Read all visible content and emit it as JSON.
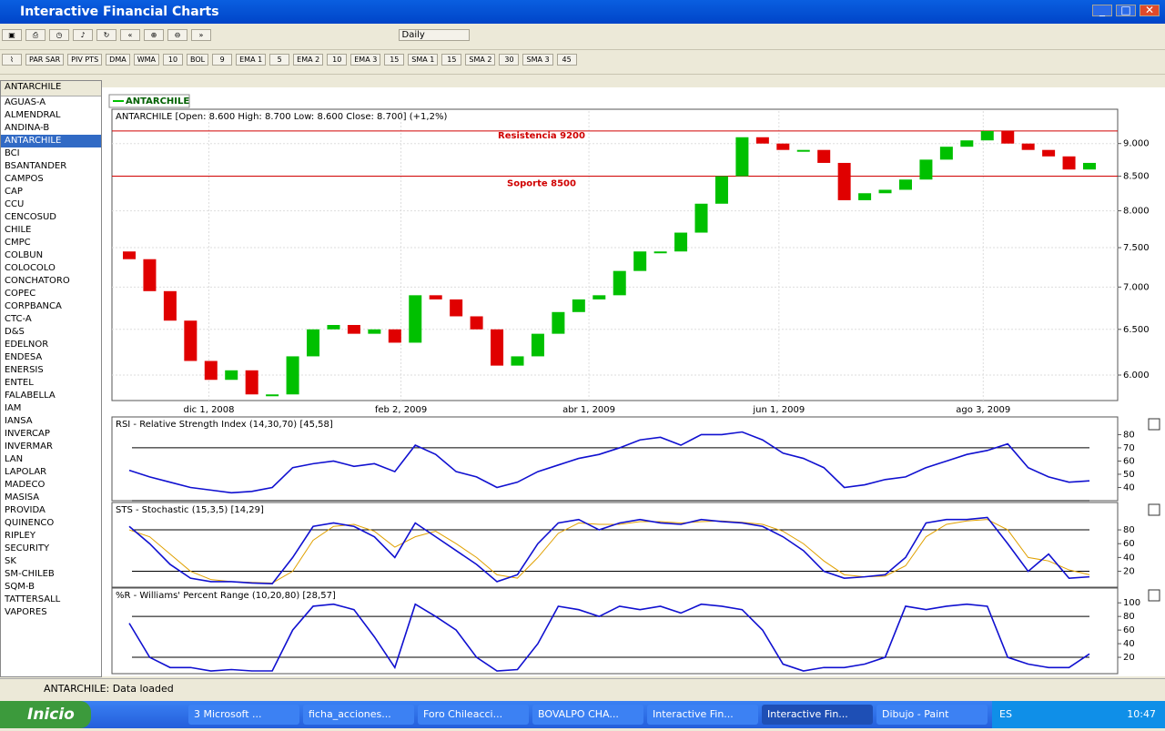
{
  "window": {
    "title": "Interactive Financial Charts"
  },
  "toolbar": {
    "period": "Daily",
    "buttons": [
      "PAR SAR",
      "PIV PTS",
      "DMA",
      "WMA",
      "10",
      "BOL",
      "9",
      "EMA 1",
      "5",
      "EMA 2",
      "10",
      "EMA 3",
      "15",
      "SMA 1",
      "15",
      "SMA 2",
      "30",
      "SMA 3",
      "45"
    ]
  },
  "sidebar": {
    "header": "ANTARCHILE",
    "selected": 3,
    "items": [
      "AGUAS-A",
      "ALMENDRAL",
      "ANDINA-B",
      "ANTARCHILE",
      "BCI",
      "BSANTANDER",
      "CAMPOS",
      "CAP",
      "CCU",
      "CENCOSUD",
      "CHILE",
      "CMPC",
      "COLBUN",
      "COLOCOLO",
      "CONCHATORO",
      "COPEC",
      "CORPBANCA",
      "CTC-A",
      "D&S",
      "EDELNOR",
      "ENDESA",
      "ENERSIS",
      "ENTEL",
      "FALABELLA",
      "IAM",
      "IANSA",
      "INVERCAP",
      "INVERMAR",
      "LAN",
      "LAPOLAR",
      "MADECO",
      "MASISA",
      "PROVIDA",
      "QUINENCO",
      "RIPLEY",
      "SECURITY",
      "SK",
      "SM-CHILEB",
      "SQM-B",
      "TATTERSALL",
      "VAPORES"
    ]
  },
  "chart_data": [
    {
      "type": "candlestick",
      "legend": "ANTARCHILE",
      "title": "ANTARCHILE [Open: 8.600  High: 8.700  Low: 8.600  Close: 8.700] (+1,2%)",
      "log": true,
      "open": [
        7450,
        7350,
        6950,
        6600,
        6150,
        5950,
        6050,
        5800,
        5800,
        6200,
        6500,
        6550,
        6450,
        6500,
        6350,
        6900,
        6850,
        6650,
        6500,
        6100,
        6200,
        6450,
        6700,
        6850,
        6900,
        7200,
        7450,
        7450,
        7700,
        8100,
        8500,
        9100,
        9000,
        8900,
        8900,
        8700,
        8150,
        8250,
        8300,
        8450,
        8750,
        8950,
        9050,
        9200,
        9000,
        8900,
        8800,
        8600
      ],
      "close": [
        7350,
        6950,
        6600,
        6150,
        5950,
        6050,
        5800,
        5800,
        6200,
        6500,
        6550,
        6450,
        6500,
        6350,
        6900,
        6850,
        6650,
        6500,
        6100,
        6200,
        6450,
        6700,
        6850,
        6900,
        7200,
        7450,
        7450,
        7700,
        8100,
        8500,
        9100,
        9000,
        8900,
        8900,
        8700,
        8150,
        8250,
        8300,
        8450,
        8750,
        8950,
        9050,
        9200,
        9000,
        8900,
        8800,
        8600,
        8700
      ],
      "ylim": [
        5738,
        9527
      ],
      "yticks": [
        {
          "value": 6000,
          "label": "6.000"
        },
        {
          "value": 6500,
          "label": "6.500"
        },
        {
          "value": 7000,
          "label": "7.000"
        },
        {
          "value": 7500,
          "label": "7.500"
        },
        {
          "value": 8000,
          "label": "8.000"
        },
        {
          "value": 8500,
          "label": "8.500"
        },
        {
          "value": 9000,
          "label": "9.000"
        }
      ],
      "xticks": [
        {
          "value": 3.9,
          "label": "dic 1, 2008"
        },
        {
          "value": 13.3,
          "label": "feb 2, 2009"
        },
        {
          "value": 22.5,
          "label": "abr 1, 2009"
        },
        {
          "value": 31.8,
          "label": "jun 1, 2009"
        },
        {
          "value": 41.8,
          "label": "ago 3, 2009"
        }
      ],
      "levels": [
        {
          "value": 9200,
          "label": "Resistencia 9200"
        },
        {
          "value": 8500,
          "label": "Soporte 8500"
        }
      ],
      "level_color": "#d00000",
      "up_color": "#00c000",
      "down_color": "#e00000"
    },
    {
      "type": "line",
      "title": "RSI - Relative Strength Index (14,30,70) [45,58]",
      "ylim": [
        30,
        92
      ],
      "yticks": [
        40,
        50,
        60,
        70,
        80
      ],
      "levels": [
        30,
        70
      ],
      "series": [
        {
          "color": "#1010d0",
          "values": [
            53,
            48,
            44,
            40,
            38,
            36,
            37,
            40,
            55,
            58,
            60,
            56,
            58,
            52,
            72,
            65,
            52,
            48,
            40,
            44,
            52,
            57,
            62,
            65,
            70,
            76,
            78,
            72,
            80,
            80,
            82,
            76,
            66,
            62,
            55,
            40,
            42,
            46,
            48,
            55,
            60,
            65,
            68,
            73,
            55,
            48,
            44,
            45
          ]
        }
      ]
    },
    {
      "type": "line",
      "title": "STS - Stochastic (15,3,5) [14,29]",
      "ylim": [
        -3,
        117
      ],
      "yticks": [
        20,
        40,
        60,
        80
      ],
      "levels": [
        20,
        80
      ],
      "series": [
        {
          "color": "#1010d0",
          "values": [
            85,
            60,
            30,
            10,
            5,
            5,
            3,
            2,
            40,
            85,
            90,
            85,
            70,
            40,
            90,
            70,
            50,
            30,
            5,
            15,
            60,
            90,
            95,
            80,
            90,
            95,
            90,
            88,
            95,
            92,
            90,
            85,
            70,
            50,
            20,
            10,
            12,
            15,
            40,
            90,
            95,
            95,
            98,
            60,
            20,
            45,
            10,
            12
          ]
        },
        {
          "color": "#e0a000",
          "values": [
            80,
            70,
            45,
            20,
            8,
            5,
            4,
            3,
            20,
            65,
            85,
            88,
            78,
            55,
            70,
            78,
            60,
            40,
            15,
            10,
            40,
            75,
            90,
            88,
            88,
            92,
            92,
            90,
            92,
            93,
            91,
            88,
            78,
            60,
            35,
            15,
            12,
            13,
            28,
            70,
            88,
            93,
            95,
            80,
            40,
            35,
            22,
            15
          ]
        }
      ]
    },
    {
      "type": "line",
      "title": "%R - Williams' Percent Range (10,20,80) [28,57]",
      "ylim": [
        -4,
        119
      ],
      "yticks": [
        20,
        40,
        60,
        80,
        100
      ],
      "levels": [
        20,
        80
      ],
      "series": [
        {
          "color": "#1010d0",
          "values": [
            70,
            20,
            5,
            5,
            0,
            2,
            0,
            0,
            60,
            95,
            98,
            90,
            50,
            5,
            98,
            80,
            60,
            20,
            0,
            2,
            40,
            95,
            90,
            80,
            95,
            90,
            95,
            85,
            98,
            95,
            90,
            60,
            10,
            0,
            5,
            5,
            10,
            20,
            95,
            90,
            95,
            98,
            95,
            20,
            10,
            5,
            5,
            25
          ]
        }
      ]
    }
  ],
  "status": "ANTARCHILE: Data loaded",
  "taskbar": {
    "start": "Inicio",
    "items": [
      "3 Microsoft ...",
      "ficha_acciones...",
      "Foro Chileacci...",
      "BOVALPO CHA...",
      "Interactive Fin...",
      "Interactive Fin...",
      "Dibujo - Paint"
    ],
    "active": 5,
    "lang": "ES",
    "clock": "10:47"
  }
}
